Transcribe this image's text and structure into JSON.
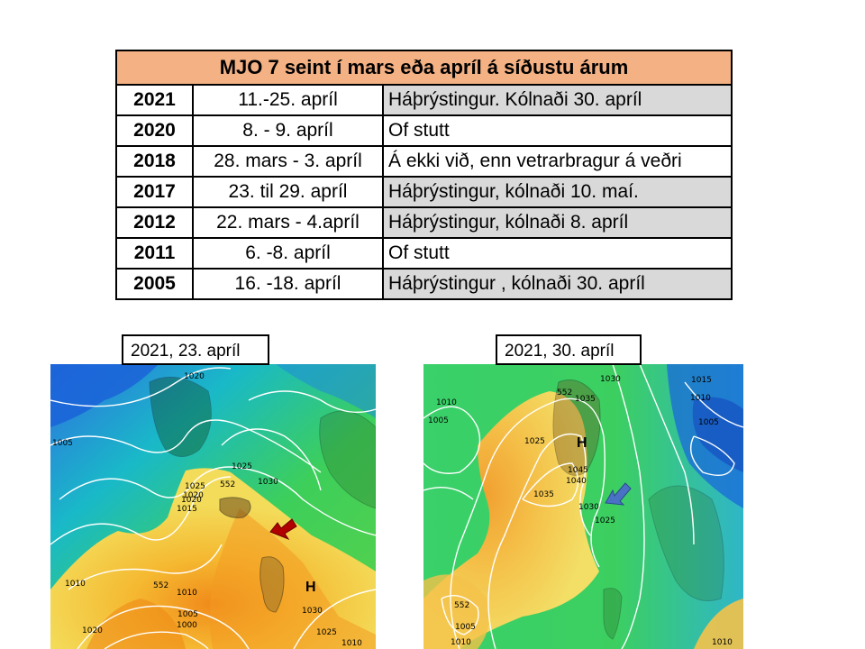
{
  "table": {
    "title": "MJO 7 seint í mars eða apríl á síðustu árum",
    "rows": [
      {
        "year": "2021",
        "dates": "11.-25. apríl",
        "note": "Háþrýstingur. Kólnaði 30. apríl"
      },
      {
        "year": "2020",
        "dates": "8. - 9. apríl",
        "note": "Of stutt"
      },
      {
        "year": "2018",
        "dates": "28. mars - 3. apríl",
        "note": "Á ekki við, enn vetrarbragur á veðri"
      },
      {
        "year": "2017",
        "dates": "23. til 29. apríl",
        "note": "Háþrýstingur, kólnaði 10. maí."
      },
      {
        "year": "2012",
        "dates": "22. mars - 4.apríl",
        "note": "Háþrýstingur, kólnaði 8. apríl"
      },
      {
        "year": "2011",
        "dates": "6. -8. apríl",
        "note": "Of stutt"
      },
      {
        "year": "2005",
        "dates": "16. -18. apríl",
        "note": "Háþrýstingur , kólnaði 30. apríl"
      }
    ]
  },
  "maps": {
    "left": {
      "caption": "2021, 23. apríl",
      "high_label": "H",
      "arrow_color": "#b00000",
      "isobar_labels": [
        "1020",
        "1005",
        "1025",
        "1025",
        "1030",
        "1020",
        "1020",
        "1015",
        "552",
        "1010",
        "552",
        "1010",
        "1005",
        "1000",
        "1020",
        "1030",
        "1025",
        "1010"
      ]
    },
    "right": {
      "caption": "2021, 30. apríl",
      "high_label": "H",
      "arrow_color": "#4a72c4",
      "isobar_labels": [
        "1030",
        "552",
        "1035",
        "1010",
        "1005",
        "1025",
        "1045",
        "1040",
        "1035",
        "1030",
        "1025",
        "1015",
        "1010",
        "1005",
        "552",
        "1005",
        "1010",
        "1010"
      ]
    }
  }
}
